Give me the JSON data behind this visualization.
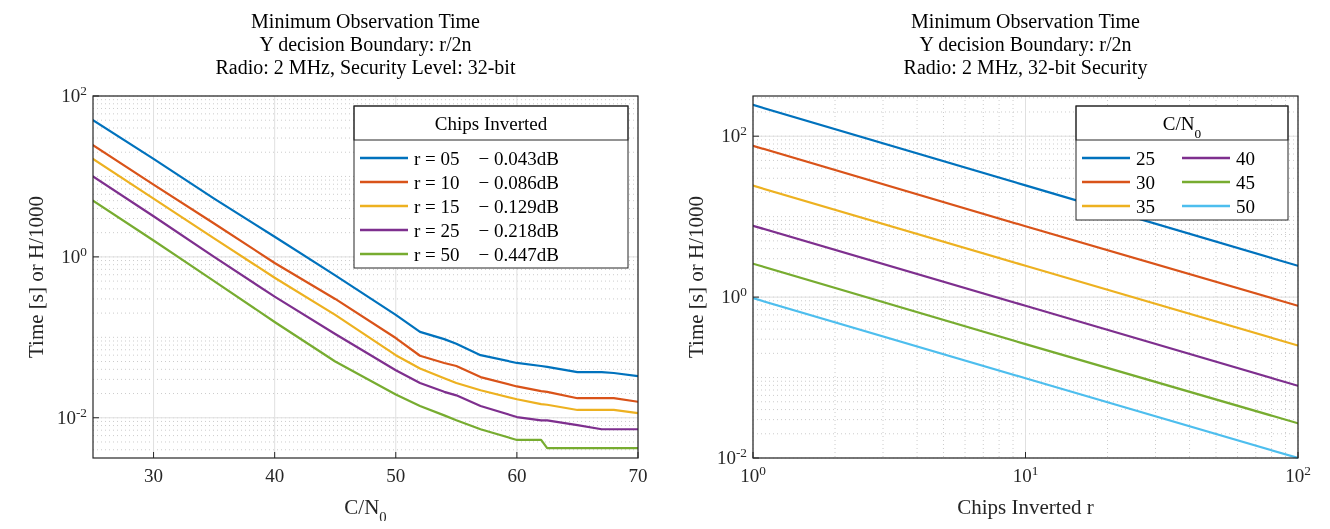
{
  "chart_data": [
    {
      "type": "line",
      "title": "Minimum Observation Time\nY decision Boundary: r/2n\nRadio: 2 MHz, Security Level: 32-bit",
      "xlabel": "C/N$_{0}$",
      "ylabel": "Time [s] or H/1000",
      "log": "y",
      "grid": true,
      "legend": "top right",
      "legend_title": "Chips Inverted",
      "line_style": "solid",
      "xlim": [
        25,
        70
      ],
      "xticks": [
        30,
        40,
        50,
        60,
        70
      ],
      "ylim": [
        0.00316,
        100
      ],
      "yticks": [
        {
          "value": 0.01,
          "label": "10$^{-2}$"
        },
        {
          "value": 1,
          "label": "10$^{0}$"
        },
        {
          "value": 100,
          "label": "10$^{2}$"
        }
      ],
      "x": [
        25,
        30,
        35,
        40,
        45,
        50,
        52,
        54,
        55,
        57,
        60,
        62,
        62.5,
        65,
        67,
        68,
        70
      ],
      "series": [
        {
          "name": "r = 05    − 0.043dB",
          "color": "#0072bd",
          "values": [
            50,
            16.5,
            5.3,
            1.78,
            0.59,
            0.19,
            0.117,
            0.095,
            0.083,
            0.06,
            0.048,
            0.044,
            0.043,
            0.037,
            0.037,
            0.036,
            0.033
          ]
        },
        {
          "name": "r = 10    − 0.086dB",
          "color": "#d95319",
          "values": [
            24.5,
            7.9,
            2.6,
            0.84,
            0.3,
            0.098,
            0.059,
            0.048,
            0.044,
            0.032,
            0.0245,
            0.0214,
            0.021,
            0.0175,
            0.0175,
            0.0175,
            0.0158
          ]
        },
        {
          "name": "r = 15    − 0.129dB",
          "color": "#edb120",
          "values": [
            16.5,
            5.3,
            1.7,
            0.55,
            0.19,
            0.06,
            0.041,
            0.031,
            0.027,
            0.022,
            0.017,
            0.0148,
            0.0145,
            0.0125,
            0.0125,
            0.0125,
            0.0114
          ]
        },
        {
          "name": "r = 25    − 0.218dB",
          "color": "#7e2f8e",
          "values": [
            10,
            3.2,
            1.0,
            0.32,
            0.11,
            0.039,
            0.027,
            0.021,
            0.019,
            0.014,
            0.0102,
            0.0093,
            0.0093,
            0.0081,
            0.0072,
            0.0072,
            0.0072
          ]
        },
        {
          "name": "r = 50    − 0.447dB",
          "color": "#77ac30",
          "values": [
            5.0,
            1.6,
            0.5,
            0.155,
            0.05,
            0.0195,
            0.014,
            0.0107,
            0.0093,
            0.0072,
            0.0053,
            0.0053,
            0.0042,
            0.0042,
            0.0042,
            0.0042,
            0.0042
          ]
        }
      ]
    },
    {
      "type": "line",
      "title": "Minimum Observation Time\nY decision Boundary: r/2n\nRadio: 2 MHz, 32-bit Security",
      "xlabel": "Chips Inverted r",
      "ylabel": "Time [s] or H/1000",
      "log": "xy",
      "grid": true,
      "legend": "top right",
      "legend_title": "C/N$_{0}$",
      "line_style": "solid",
      "xlim": [
        1,
        100
      ],
      "xticks": [
        {
          "value": 1,
          "label": "10$^{0}$"
        },
        {
          "value": 10,
          "label": "10$^{1}$"
        },
        {
          "value": 100,
          "label": "10$^{2}$"
        }
      ],
      "ylim": [
        0.01,
        316
      ],
      "yticks": [
        {
          "value": 0.01,
          "label": "10$^{-2}$"
        },
        {
          "value": 1,
          "label": "10$^{0}$"
        },
        {
          "value": 100,
          "label": "10$^{2}$"
        }
      ],
      "x": [
        1,
        10,
        100
      ],
      "series": [
        {
          "name": "25",
          "color": "#0072bd",
          "values": [
            245,
            24.5,
            2.45
          ]
        },
        {
          "name": "30",
          "color": "#d95319",
          "values": [
            76,
            7.6,
            0.78
          ]
        },
        {
          "name": "35",
          "color": "#edb120",
          "values": [
            24.3,
            2.45,
            0.25
          ]
        },
        {
          "name": "40",
          "color": "#7e2f8e",
          "values": [
            7.7,
            0.78,
            0.079
          ]
        },
        {
          "name": "45",
          "color": "#77ac30",
          "values": [
            2.6,
            0.26,
            0.027
          ]
        },
        {
          "name": "50",
          "color": "#4dbeee",
          "values": [
            0.97,
            0.098,
            0.01
          ]
        }
      ]
    }
  ]
}
